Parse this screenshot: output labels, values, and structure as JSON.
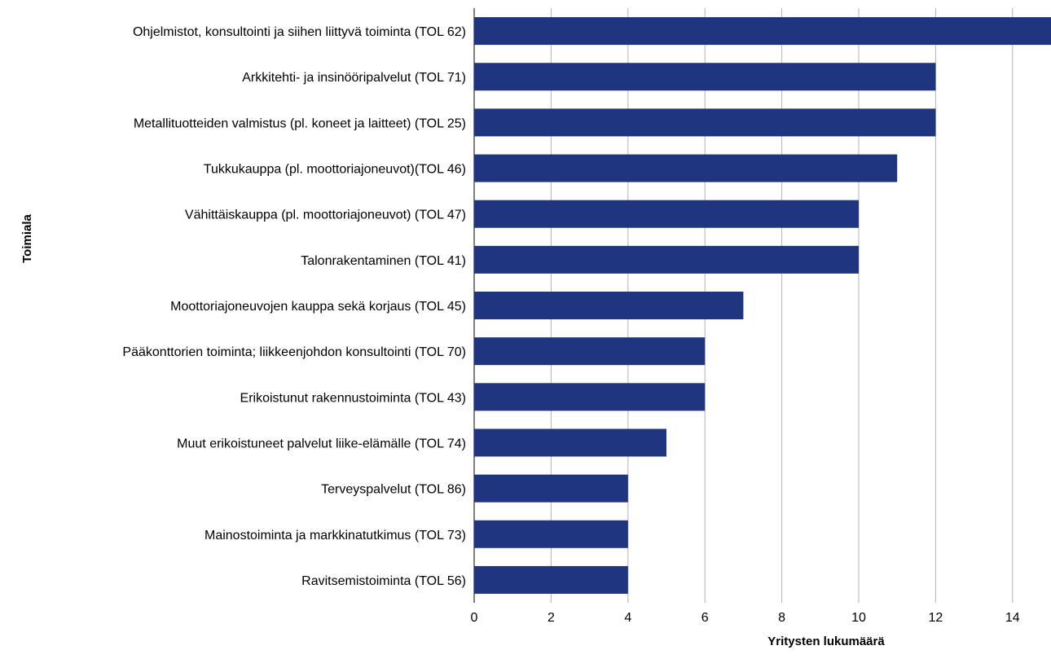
{
  "chart_data": {
    "type": "bar",
    "orientation": "horizontal",
    "categories": [
      "Ohjelmistot, konsultointi ja siihen liittyvä toiminta (TOL 62)",
      "Arkkitehti- ja insinööripalvelut (TOL 71)",
      "Metallituotteiden valmistus (pl. koneet ja laitteet) (TOL 25)",
      "Tukkukauppa (pl. moottoriajoneuvot)(TOL 46)",
      "Vähittäiskauppa (pl. moottoriajoneuvot) (TOL 47)",
      "Talonrakentaminen (TOL 41)",
      "Moottoriajoneuvojen kauppa sekä korjaus (TOL 45)",
      "Pääkonttorien toiminta; liikkeenjohdon konsultointi (TOL 70)",
      "Erikoistunut rakennustoiminta (TOL 43)",
      "Muut erikoistuneet palvelut liike-elämälle (TOL 74)",
      "Terveyspalvelut (TOL 86)",
      "Mainostoiminta ja markkinatutkimus (TOL 73)",
      "Ravitsemistoiminta (TOL 56)"
    ],
    "values": [
      15,
      12,
      12,
      11,
      10,
      10,
      7,
      6,
      6,
      5,
      4,
      4,
      4
    ],
    "xlabel": "Yritysten lukumäärä",
    "ylabel": "Toimiala",
    "xlim": [
      0,
      15
    ],
    "xticks": [
      0,
      2,
      4,
      6,
      8,
      10,
      12,
      14
    ],
    "grid": true,
    "bar_color": "#1f3580"
  }
}
